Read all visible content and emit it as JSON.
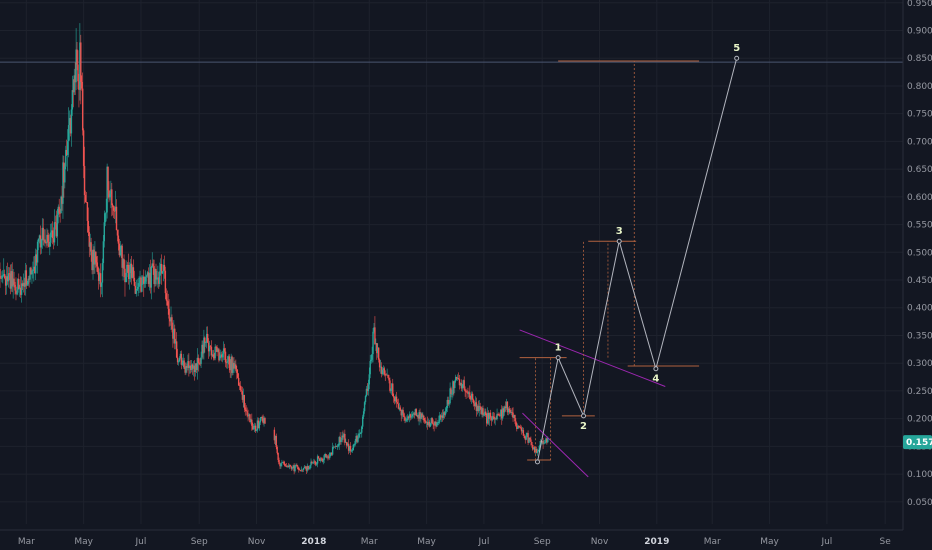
{
  "chart_data": {
    "type": "candlestick",
    "colors": {
      "background": "#131722",
      "up": "#26a69a",
      "down": "#ef5350",
      "grid": "#1e222d",
      "axis_text": "#9598a1",
      "wave_line": "#b2b5be",
      "level_line": "#b2623f",
      "channel_line": "#9c27b0",
      "price_tag": "#26a69a",
      "horizontal_line": "#4a5570"
    },
    "y_axis": {
      "position": "right",
      "range": [
        0.01,
        0.955
      ],
      "ticks": [
        "0.9500",
        "0.9000",
        "0.8500",
        "0.8000",
        "0.7500",
        "0.7000",
        "0.6500",
        "0.6000",
        "0.5500",
        "0.5000",
        "0.4500",
        "0.4000",
        "0.3500",
        "0.3000",
        "0.2500",
        "0.2000",
        "0.1500",
        "0.1000",
        "0.0500"
      ]
    },
    "x_axis": {
      "range": [
        "2017-02-01",
        "2019-09-20"
      ],
      "ticks": [
        {
          "date": "2017-03-01",
          "label": "Mar",
          "bold": false
        },
        {
          "date": "2017-05-01",
          "label": "May",
          "bold": false
        },
        {
          "date": "2017-07-01",
          "label": "Jul",
          "bold": false
        },
        {
          "date": "2017-09-01",
          "label": "Sep",
          "bold": false
        },
        {
          "date": "2017-11-01",
          "label": "Nov",
          "bold": false
        },
        {
          "date": "2018-01-01",
          "label": "2018",
          "bold": true
        },
        {
          "date": "2018-03-01",
          "label": "Mar",
          "bold": false
        },
        {
          "date": "2018-05-01",
          "label": "May",
          "bold": false
        },
        {
          "date": "2018-07-01",
          "label": "Jul",
          "bold": false
        },
        {
          "date": "2018-09-01",
          "label": "Sep",
          "bold": false
        },
        {
          "date": "2018-11-01",
          "label": "Nov",
          "bold": false
        },
        {
          "date": "2019-01-01",
          "label": "2019",
          "bold": true
        },
        {
          "date": "2019-03-01",
          "label": "Mar",
          "bold": false
        },
        {
          "date": "2019-05-01",
          "label": "May",
          "bold": false
        },
        {
          "date": "2019-07-01",
          "label": "Jul",
          "bold": false
        },
        {
          "date": "2019-09-01",
          "label": "Se",
          "bold": false
        }
      ]
    },
    "price_path": [
      [
        "2017-02-01",
        0.47
      ],
      [
        "2017-02-10",
        0.45
      ],
      [
        "2017-02-20",
        0.44
      ],
      [
        "2017-03-01",
        0.45
      ],
      [
        "2017-03-10",
        0.48
      ],
      [
        "2017-03-18",
        0.54
      ],
      [
        "2017-03-25",
        0.51
      ],
      [
        "2017-04-01",
        0.53
      ],
      [
        "2017-04-08",
        0.62
      ],
      [
        "2017-04-15",
        0.72
      ],
      [
        "2017-04-22",
        0.82
      ],
      [
        "2017-04-28",
        0.84
      ],
      [
        "2017-05-02",
        0.64
      ],
      [
        "2017-05-08",
        0.5
      ],
      [
        "2017-05-14",
        0.47
      ],
      [
        "2017-05-20",
        0.45
      ],
      [
        "2017-05-26",
        0.62
      ],
      [
        "2017-06-01",
        0.6
      ],
      [
        "2017-06-08",
        0.5
      ],
      [
        "2017-06-15",
        0.47
      ],
      [
        "2017-06-25",
        0.45
      ],
      [
        "2017-07-05",
        0.45
      ],
      [
        "2017-07-15",
        0.46
      ],
      [
        "2017-07-25",
        0.46
      ],
      [
        "2017-08-01",
        0.38
      ],
      [
        "2017-08-10",
        0.31
      ],
      [
        "2017-08-20",
        0.29
      ],
      [
        "2017-09-01",
        0.3
      ],
      [
        "2017-09-08",
        0.35
      ],
      [
        "2017-09-15",
        0.31
      ],
      [
        "2017-09-22",
        0.32
      ],
      [
        "2017-10-01",
        0.3
      ],
      [
        "2017-10-10",
        0.29
      ],
      [
        "2017-10-20",
        0.22
      ],
      [
        "2017-10-30",
        0.18
      ],
      [
        "2017-11-05",
        0.2
      ],
      [
        "2017-11-12",
        0.19
      ],
      [
        "2017-11-18",
        0.19
      ],
      [
        "2017-11-25",
        0.12
      ],
      [
        "2017-12-05",
        0.115
      ],
      [
        "2017-12-15",
        0.11
      ],
      [
        "2017-12-25",
        0.11
      ],
      [
        "2018-01-05",
        0.125
      ],
      [
        "2018-01-15",
        0.13
      ],
      [
        "2018-01-25",
        0.15
      ],
      [
        "2018-02-01",
        0.17
      ],
      [
        "2018-02-10",
        0.14
      ],
      [
        "2018-02-20",
        0.18
      ],
      [
        "2018-03-01",
        0.28
      ],
      [
        "2018-03-06",
        0.36
      ],
      [
        "2018-03-12",
        0.3
      ],
      [
        "2018-03-20",
        0.27
      ],
      [
        "2018-04-01",
        0.22
      ],
      [
        "2018-04-10",
        0.2
      ],
      [
        "2018-04-20",
        0.21
      ],
      [
        "2018-05-01",
        0.2
      ],
      [
        "2018-05-10",
        0.19
      ],
      [
        "2018-05-20",
        0.21
      ],
      [
        "2018-06-01",
        0.27
      ],
      [
        "2018-06-08",
        0.26
      ],
      [
        "2018-06-15",
        0.24
      ],
      [
        "2018-06-25",
        0.22
      ],
      [
        "2018-07-05",
        0.2
      ],
      [
        "2018-07-15",
        0.2
      ],
      [
        "2018-07-25",
        0.22
      ],
      [
        "2018-08-05",
        0.19
      ],
      [
        "2018-08-15",
        0.17
      ],
      [
        "2018-08-25",
        0.14
      ],
      [
        "2018-09-01",
        0.16
      ],
      [
        "2018-09-07",
        0.1576
      ]
    ],
    "elliott_wave": [
      {
        "label": "",
        "date": "2018-08-27",
        "price": 0.122
      },
      {
        "label": "1",
        "date": "2018-09-18",
        "price": 0.31
      },
      {
        "label": "2",
        "date": "2018-10-15",
        "price": 0.205
      },
      {
        "label": "3",
        "date": "2018-11-22",
        "price": 0.52
      },
      {
        "label": "4",
        "date": "2018-12-31",
        "price": 0.29
      },
      {
        "label": "5",
        "date": "2019-03-27",
        "price": 0.85
      }
    ],
    "level_lines": [
      {
        "price": 0.1255,
        "from": "2018-08-16",
        "to": "2018-09-10"
      },
      {
        "price": 0.31,
        "from": "2018-08-08",
        "to": "2018-09-27"
      },
      {
        "price": 0.205,
        "from": "2018-09-22",
        "to": "2018-10-27"
      },
      {
        "price": 0.52,
        "from": "2018-10-20",
        "to": "2018-12-10"
      },
      {
        "price": 0.295,
        "from": "2018-12-01",
        "to": "2019-02-15"
      },
      {
        "price": 0.845,
        "from": "2018-09-18",
        "to": "2019-02-15"
      }
    ],
    "horizontal_line": 0.843,
    "projection_verticals": [
      {
        "date": "2018-08-25",
        "from": 0.125,
        "to": 0.31
      },
      {
        "date": "2018-10-15",
        "from": 0.205,
        "to": 0.52
      },
      {
        "date": "2018-11-10",
        "from": 0.31,
        "to": 0.52
      },
      {
        "date": "2018-12-08",
        "from": 0.295,
        "to": 0.845
      },
      {
        "date": "2018-09-10",
        "from": 0.125,
        "to": 0.31
      }
    ],
    "channel": [
      {
        "from_date": "2018-08-11",
        "from_price": 0.21,
        "to_date": "2018-10-20",
        "to_price": 0.095
      },
      {
        "from_date": "2018-08-08",
        "from_price": 0.36,
        "to_date": "2019-01-10",
        "to_price": 0.258
      }
    ],
    "last_price": "0.1576"
  }
}
